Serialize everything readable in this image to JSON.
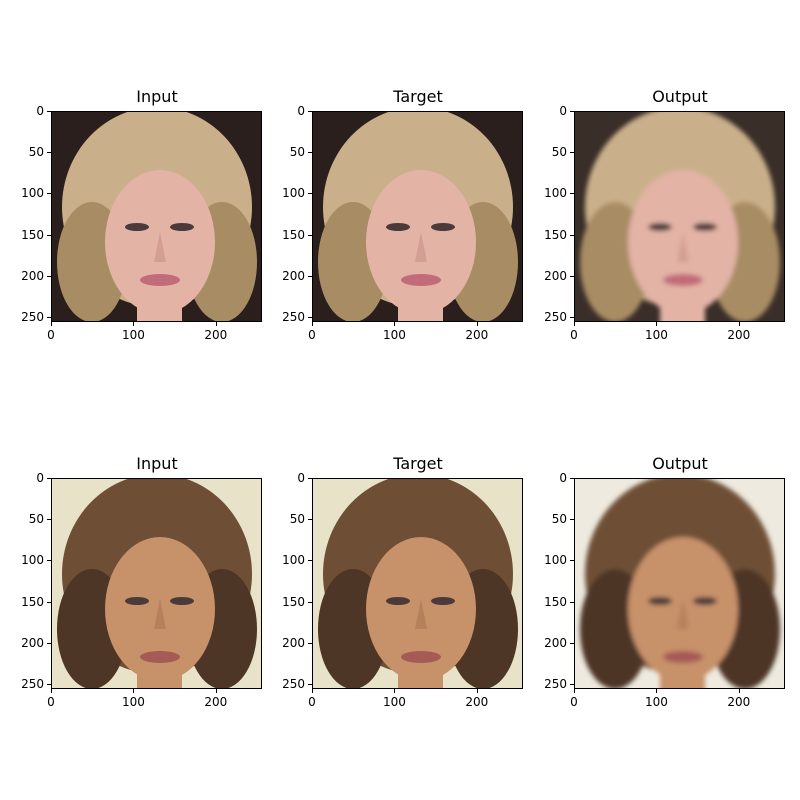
{
  "panels": [
    {
      "title": "Input",
      "subject": "blonde woman portrait",
      "bg": "#2a1f1c"
    },
    {
      "title": "Target",
      "subject": "blonde woman portrait",
      "bg": "#2a1f1c"
    },
    {
      "title": "Output",
      "subject": "blonde woman portrait",
      "bg": "#3a2e28"
    },
    {
      "title": "Input",
      "subject": "brunette woman portrait",
      "bg": "#e8e2c8"
    },
    {
      "title": "Target",
      "subject": "brunette woman portrait",
      "bg": "#e8e2c8"
    },
    {
      "title": "Output",
      "subject": "brunette woman portrait",
      "bg": "#eeeae0"
    }
  ],
  "axes": {
    "x_ticks": [
      "0",
      "100",
      "200"
    ],
    "y_ticks": [
      "0",
      "50",
      "100",
      "150",
      "200",
      "250"
    ],
    "x_values": [
      0,
      100,
      200
    ],
    "y_values": [
      0,
      50,
      100,
      150,
      200,
      250
    ],
    "range": [
      0,
      256
    ]
  }
}
